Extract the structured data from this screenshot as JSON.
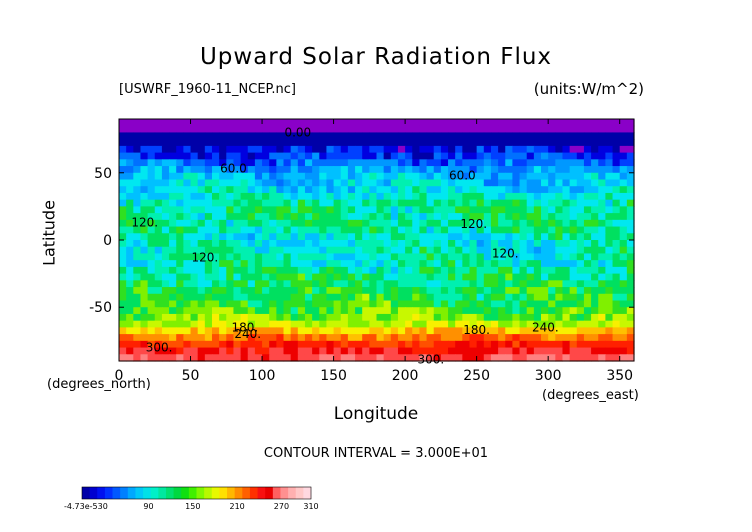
{
  "chart_data": {
    "type": "heatmap",
    "title": "Upward Solar Radiation Flux",
    "subtitle_left": "[USWRF_1960-11_NCEP.nc]",
    "subtitle_right": "(units:W/m^2)",
    "xlabel": "Longitude",
    "ylabel": "Latitude",
    "xunit": "(degrees_east)",
    "yunit": "(degrees_north)",
    "xlim": [
      0,
      360
    ],
    "ylim": [
      -90,
      90
    ],
    "xticks": [
      "0",
      "50",
      "100",
      "150",
      "200",
      "250",
      "300",
      "350"
    ],
    "yticks": [
      "50",
      "0",
      "-50"
    ],
    "footer": "CONTOUR INTERVAL = 3.000E+01",
    "contour_interval": 30,
    "zonal_profile": [
      {
        "lat": 90,
        "value": 0
      },
      {
        "lat": 80,
        "value": 0
      },
      {
        "lat": 78,
        "value": 15
      },
      {
        "lat": 70,
        "value": 30
      },
      {
        "lat": 60,
        "value": 60
      },
      {
        "lat": 50,
        "value": 90
      },
      {
        "lat": 40,
        "value": 105
      },
      {
        "lat": 25,
        "value": 135
      },
      {
        "lat": 10,
        "value": 135
      },
      {
        "lat": 0,
        "value": 115
      },
      {
        "lat": -15,
        "value": 125
      },
      {
        "lat": -30,
        "value": 140
      },
      {
        "lat": -45,
        "value": 150
      },
      {
        "lat": -55,
        "value": 165
      },
      {
        "lat": -62,
        "value": 180
      },
      {
        "lat": -68,
        "value": 220
      },
      {
        "lat": -75,
        "value": 250
      },
      {
        "lat": -82,
        "value": 280
      },
      {
        "lat": -90,
        "value": 300
      }
    ],
    "contour_labels": [
      {
        "text": "0.00",
        "lon": 125,
        "lat": 80
      },
      {
        "text": "60.0",
        "lon": 80,
        "lat": 53
      },
      {
        "text": "60.0",
        "lon": 240,
        "lat": 48
      },
      {
        "text": "120.",
        "lon": 18,
        "lat": 13
      },
      {
        "text": "120.",
        "lon": 248,
        "lat": 12
      },
      {
        "text": "120.",
        "lon": 60,
        "lat": -13
      },
      {
        "text": "120.",
        "lon": 270,
        "lat": -10
      },
      {
        "text": "180.",
        "lon": 88,
        "lat": -65
      },
      {
        "text": "240.",
        "lon": 90,
        "lat": -70
      },
      {
        "text": "180.",
        "lon": 250,
        "lat": -67
      },
      {
        "text": "240.",
        "lon": 298,
        "lat": -65
      },
      {
        "text": "300.",
        "lon": 28,
        "lat": -80
      },
      {
        "text": "300.",
        "lon": 218,
        "lat": -89
      }
    ],
    "colorbar": {
      "tick_labels": [
        "-4.73e-530",
        "90",
        "150",
        "210",
        "270",
        "310"
      ],
      "tick_values": [
        0,
        90,
        150,
        210,
        270,
        310
      ],
      "colors": [
        "#0000a8",
        "#0000d0",
        "#0010f0",
        "#0030ff",
        "#0058ff",
        "#0080ff",
        "#00a8ff",
        "#00c8f8",
        "#00e0e8",
        "#00f0c8",
        "#00e8a0",
        "#00e070",
        "#00d840",
        "#10e010",
        "#40f000",
        "#80f800",
        "#b8f800",
        "#e8f800",
        "#ffe000",
        "#ffb800",
        "#ff8c00",
        "#ff6000",
        "#ff3000",
        "#f81010",
        "#e80000",
        "#ff6060",
        "#ff9090",
        "#ffb0b0",
        "#ffc8c8",
        "#ffd8e0"
      ]
    },
    "color_scale": [
      {
        "value": 0,
        "color": "#8a00c8"
      },
      {
        "value": 15,
        "color": "#0000a8"
      },
      {
        "value": 30,
        "color": "#0000e0"
      },
      {
        "value": 45,
        "color": "#0040ff"
      },
      {
        "value": 60,
        "color": "#0070ff"
      },
      {
        "value": 75,
        "color": "#0098ff"
      },
      {
        "value": 90,
        "color": "#00c0ff"
      },
      {
        "value": 105,
        "color": "#00e8f0"
      },
      {
        "value": 120,
        "color": "#00f0b0"
      },
      {
        "value": 135,
        "color": "#00e060"
      },
      {
        "value": 150,
        "color": "#30e020"
      },
      {
        "value": 165,
        "color": "#80f000"
      },
      {
        "value": 180,
        "color": "#c8f800"
      },
      {
        "value": 195,
        "color": "#f8f000"
      },
      {
        "value": 210,
        "color": "#ffc000"
      },
      {
        "value": 225,
        "color": "#ff9000"
      },
      {
        "value": 240,
        "color": "#ff5000"
      },
      {
        "value": 255,
        "color": "#ff2000"
      },
      {
        "value": 270,
        "color": "#ee0000"
      },
      {
        "value": 285,
        "color": "#ff4848"
      },
      {
        "value": 300,
        "color": "#ff8080"
      },
      {
        "value": 310,
        "color": "#ffb0b8"
      }
    ]
  }
}
